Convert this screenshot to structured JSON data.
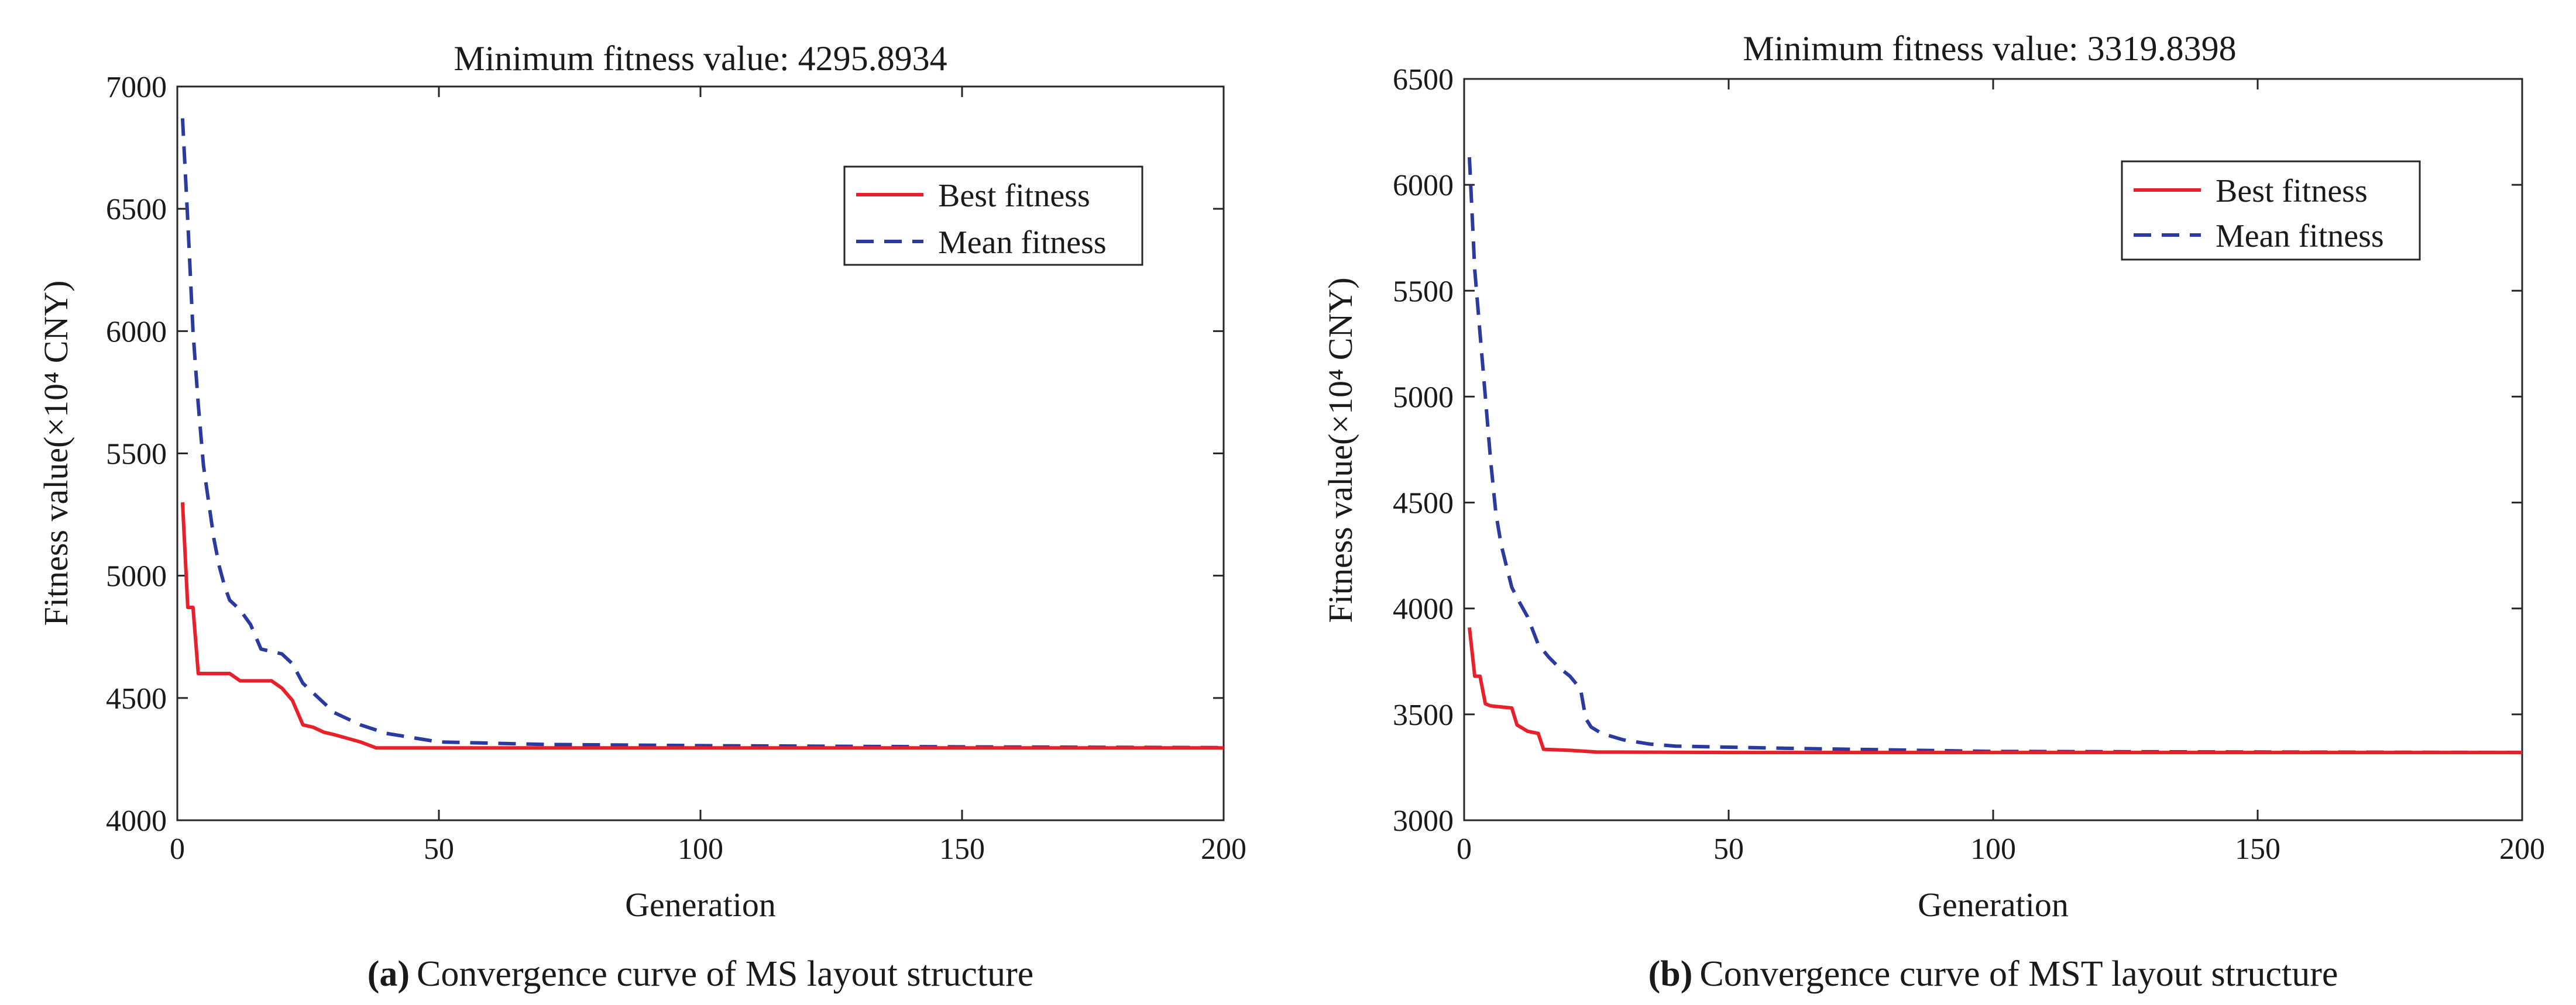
{
  "colors": {
    "best": "#e8202a",
    "mean": "#2a3a9e",
    "axis": "#262626"
  },
  "captions": [
    {
      "tag": "(a)",
      "text": "Convergence curve of MS layout structure"
    },
    {
      "tag": "(b)",
      "text": "Convergence curve of MST layout structure"
    }
  ],
  "chart_data": [
    {
      "type": "line",
      "title": "Minimum fitness value: 4295.8934",
      "xlabel": "Generation",
      "ylabel": "Fitness value(×10⁴ CNY)",
      "xlim": [
        0,
        200
      ],
      "ylim": [
        4000,
        7000
      ],
      "xticks": [
        0,
        50,
        100,
        150,
        200
      ],
      "yticks": [
        4000,
        4500,
        5000,
        5500,
        6000,
        6500,
        7000
      ],
      "legend_position": "top-right",
      "series": [
        {
          "name": "Best fitness",
          "style": "solid",
          "x": [
            1,
            2,
            3,
            4,
            5,
            10,
            12,
            18,
            20,
            22,
            24,
            26,
            28,
            30,
            35,
            38,
            200
          ],
          "y": [
            5300,
            4870,
            4870,
            4600,
            4600,
            4600,
            4570,
            4570,
            4540,
            4490,
            4390,
            4380,
            4360,
            4350,
            4320,
            4296,
            4296
          ]
        },
        {
          "name": "Mean fitness",
          "style": "dashed",
          "x": [
            1,
            2,
            3,
            4,
            5,
            6,
            7,
            8,
            9,
            10,
            12,
            14,
            16,
            18,
            20,
            22,
            24,
            26,
            28,
            30,
            35,
            40,
            50,
            70,
            100,
            150,
            200
          ],
          "y": [
            6870,
            6450,
            6000,
            5700,
            5450,
            5300,
            5150,
            5040,
            4960,
            4900,
            4860,
            4800,
            4700,
            4690,
            4680,
            4640,
            4560,
            4520,
            4480,
            4440,
            4390,
            4355,
            4320,
            4310,
            4305,
            4300,
            4297
          ]
        }
      ]
    },
    {
      "type": "line",
      "title": "Minimum fitness value: 3319.8398",
      "xlabel": "Generation",
      "ylabel": "Fitness value(×10⁴ CNY)",
      "xlim": [
        0,
        200
      ],
      "ylim": [
        3000,
        6500
      ],
      "xticks": [
        0,
        50,
        100,
        150,
        200
      ],
      "yticks": [
        3000,
        3500,
        4000,
        4500,
        5000,
        5500,
        6000,
        6500
      ],
      "legend_position": "top-right",
      "series": [
        {
          "name": "Best fitness",
          "style": "solid",
          "x": [
            1,
            2,
            3,
            4,
            5,
            9,
            10,
            12,
            14,
            15,
            20,
            25,
            50,
            200
          ],
          "y": [
            3910,
            3680,
            3680,
            3550,
            3540,
            3530,
            3450,
            3420,
            3410,
            3335,
            3330,
            3322,
            3320,
            3320
          ]
        },
        {
          "name": "Mean fitness",
          "style": "dashed",
          "x": [
            1,
            2,
            3,
            4,
            5,
            6,
            7,
            8,
            9,
            10,
            12,
            14,
            16,
            18,
            20,
            22,
            23,
            24,
            26,
            30,
            35,
            40,
            60,
            100,
            150,
            200
          ],
          "y": [
            6130,
            5600,
            5300,
            5000,
            4700,
            4450,
            4300,
            4200,
            4100,
            4050,
            3960,
            3830,
            3770,
            3720,
            3680,
            3620,
            3480,
            3440,
            3410,
            3380,
            3360,
            3350,
            3340,
            3325,
            3322,
            3320
          ]
        }
      ]
    }
  ]
}
